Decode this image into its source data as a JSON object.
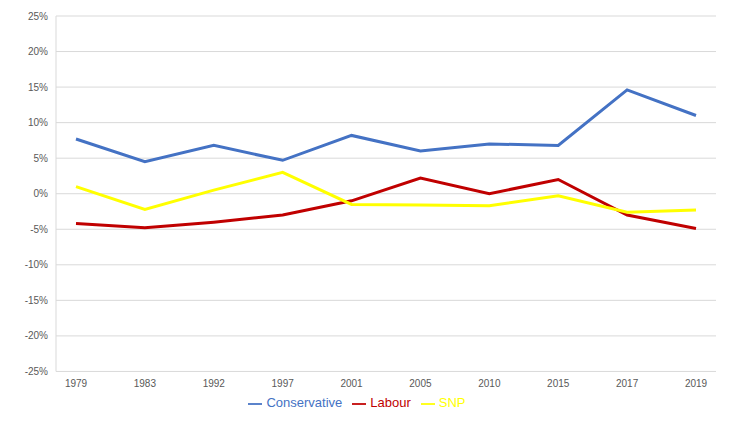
{
  "chart_data": {
    "type": "line",
    "categories": [
      "1979",
      "1983",
      "1992",
      "1997",
      "2001",
      "2005",
      "2010",
      "2015",
      "2017",
      "2019"
    ],
    "series": [
      {
        "name": "Conservative",
        "color": "#4472c4",
        "values": [
          7.7,
          4.5,
          6.8,
          4.7,
          8.2,
          6.0,
          7.0,
          6.8,
          14.6,
          11.0
        ]
      },
      {
        "name": "Labour",
        "color": "#c00000",
        "values": [
          -4.2,
          -4.8,
          -4.0,
          -3.0,
          -1.0,
          2.2,
          0.0,
          2.0,
          -3.0,
          -4.9
        ]
      },
      {
        "name": "SNP",
        "color": "#ffff00",
        "values": [
          1.0,
          -2.2,
          0.5,
          3.0,
          -1.5,
          -1.6,
          -1.7,
          -0.3,
          -2.6,
          -2.3
        ]
      }
    ],
    "ylim": [
      -25,
      25
    ],
    "yticks": [
      {
        "value": -25,
        "label": "-25%"
      },
      {
        "value": -20,
        "label": "-20%"
      },
      {
        "value": -15,
        "label": "-15%"
      },
      {
        "value": -10,
        "label": "-10%"
      },
      {
        "value": -5,
        "label": "-5%"
      },
      {
        "value": 0,
        "label": "0%"
      },
      {
        "value": 5,
        "label": "5%"
      },
      {
        "value": 10,
        "label": "10%"
      },
      {
        "value": 15,
        "label": "15%"
      },
      {
        "value": 20,
        "label": "20%"
      },
      {
        "value": 25,
        "label": "25%"
      }
    ],
    "grid": true,
    "legend": "bottom"
  }
}
